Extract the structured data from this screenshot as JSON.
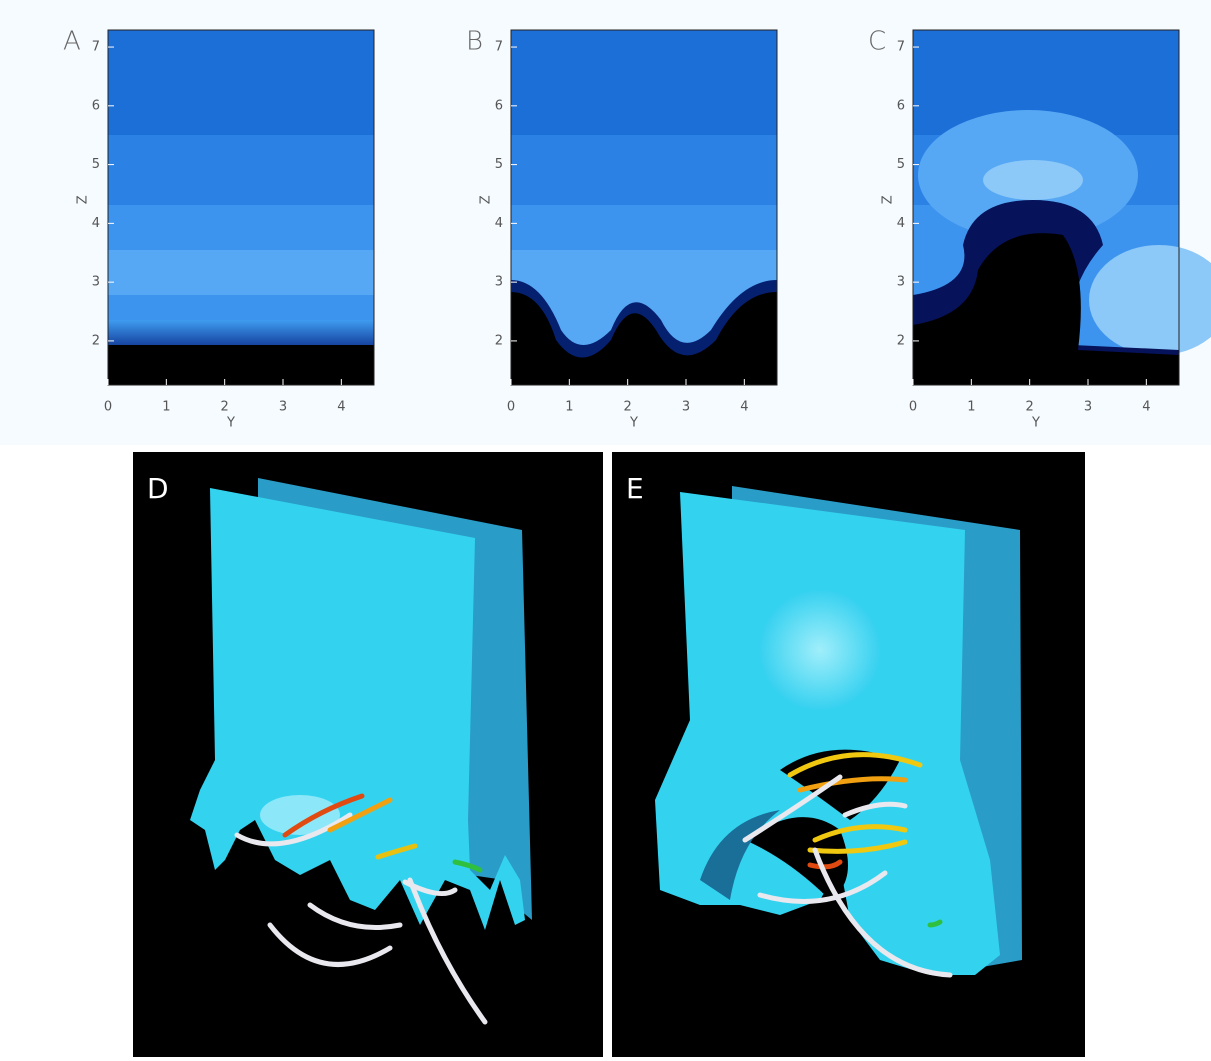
{
  "panels": [
    {
      "label": "A",
      "xlabel": "Y",
      "ylabel": "Z",
      "xlim": [
        0,
        4.56
      ],
      "ylim": [
        1.25,
        7.29
      ],
      "xticks": [
        0,
        1,
        2,
        3,
        4
      ],
      "yticks": [
        2,
        3,
        4,
        5,
        6,
        7
      ]
    },
    {
      "label": "B",
      "xlabel": "Y",
      "ylabel": "Z",
      "xlim": [
        0,
        4.56
      ],
      "ylim": [
        1.25,
        7.29
      ],
      "xticks": [
        0,
        1,
        2,
        3,
        4
      ],
      "yticks": [
        2,
        3,
        4,
        5,
        6,
        7
      ]
    },
    {
      "label": "C",
      "xlabel": "Y",
      "ylabel": "Z",
      "xlim": [
        0,
        4.56
      ],
      "ylim": [
        1.25,
        7.29
      ],
      "xticks": [
        0,
        1,
        2,
        3,
        4
      ],
      "yticks": [
        2,
        3,
        4,
        5,
        6,
        7
      ]
    }
  ],
  "renders": [
    {
      "label": "D"
    },
    {
      "label": "E"
    }
  ]
}
